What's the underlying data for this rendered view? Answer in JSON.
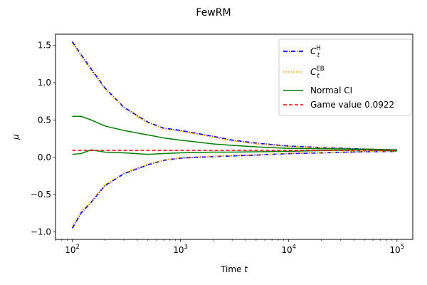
{
  "chart_data": {
    "type": "line",
    "title": "FewRM",
    "xlabel": "Time t",
    "ylabel": "μ",
    "xscale": "log",
    "xlim": [
      70,
      140000
    ],
    "ylim": [
      -1.1,
      1.65
    ],
    "grid": false,
    "legend_placement": "top-right",
    "x_ticks": [
      {
        "value": 100,
        "base": "10",
        "exp": "2"
      },
      {
        "value": 1000,
        "base": "10",
        "exp": "3"
      },
      {
        "value": 10000,
        "base": "10",
        "exp": "4"
      },
      {
        "value": 100000,
        "base": "10",
        "exp": "5"
      }
    ],
    "y_ticks": [
      {
        "value": -1.0,
        "label": "−1.0"
      },
      {
        "value": -0.5,
        "label": "−0.5"
      },
      {
        "value": 0.0,
        "label": "0.0"
      },
      {
        "value": 0.5,
        "label": "0.5"
      },
      {
        "value": 1.0,
        "label": "1.0"
      },
      {
        "value": 1.5,
        "label": "1.5"
      }
    ],
    "x": [
      100,
      120,
      150,
      200,
      300,
      500,
      700,
      1000,
      2000,
      3000,
      5000,
      10000,
      20000,
      50000,
      100000
    ],
    "series": [
      {
        "name": "C_t^H",
        "label_main": "C",
        "label_sub": "t",
        "label_sup": "H",
        "color": "#0000ff",
        "dash": "6,2,1,2",
        "width": 1.8,
        "stroke_bounds": true,
        "upper": [
          1.55,
          1.38,
          1.18,
          0.93,
          0.67,
          0.47,
          0.39,
          0.36,
          0.28,
          0.23,
          0.19,
          0.15,
          0.13,
          0.11,
          0.1
        ],
        "lower": [
          -0.95,
          -0.75,
          -0.6,
          -0.38,
          -0.22,
          -0.1,
          -0.04,
          -0.01,
          0.01,
          0.02,
          0.03,
          0.05,
          0.06,
          0.075,
          0.08
        ]
      },
      {
        "name": "C_t^EB",
        "label_main": "C",
        "label_sub": "t",
        "label_sup": "EB",
        "color": "#ffa500",
        "dash": "1.5,2",
        "width": 1.6,
        "stroke_bounds": true,
        "upper": [
          1.53,
          1.36,
          1.16,
          0.92,
          0.66,
          0.46,
          0.38,
          0.35,
          0.27,
          0.22,
          0.18,
          0.145,
          0.125,
          0.108,
          0.098
        ],
        "lower": [
          -0.93,
          -0.73,
          -0.59,
          -0.37,
          -0.21,
          -0.09,
          -0.035,
          -0.005,
          0.015,
          0.025,
          0.035,
          0.055,
          0.065,
          0.078,
          0.082
        ]
      },
      {
        "name": "Normal CI",
        "label_main": "Normal CI",
        "color": "#008000",
        "dash": "",
        "width": 1.5,
        "stroke_bounds": true,
        "upper": [
          0.55,
          0.55,
          0.5,
          0.42,
          0.36,
          0.3,
          0.26,
          0.23,
          0.18,
          0.16,
          0.14,
          0.12,
          0.115,
          0.11,
          0.1
        ],
        "lower": [
          0.04,
          0.05,
          0.1,
          0.07,
          0.06,
          0.04,
          0.05,
          0.06,
          0.07,
          0.07,
          0.075,
          0.08,
          0.09,
          0.1,
          0.085
        ]
      },
      {
        "name": "Game value 0.0922",
        "label_main": "Game value 0.0922",
        "color": "#ff0000",
        "dash": "5,3",
        "width": 1.5,
        "stroke_bounds": false,
        "y": [
          0.0922,
          0.0922,
          0.0922,
          0.0922,
          0.0922,
          0.0922,
          0.0922,
          0.0922,
          0.0922,
          0.0922,
          0.0922,
          0.0922,
          0.0922,
          0.0922,
          0.0922
        ]
      }
    ]
  }
}
